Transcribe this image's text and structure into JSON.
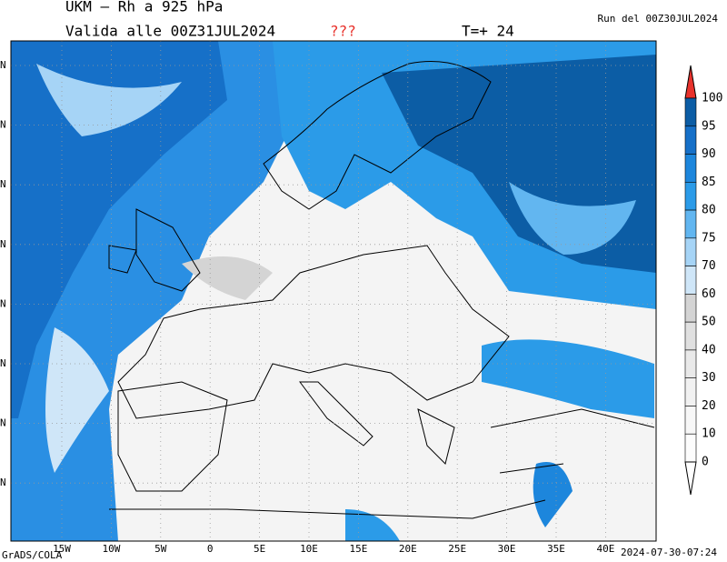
{
  "header": {
    "title": "UKM – Rh a 925 hPa",
    "valid": "Valida alle 00Z31JUL2024",
    "flag": "???",
    "step": "T=+ 24",
    "run": "Run del 00Z30JUL2024"
  },
  "map": {
    "lon_labels": [
      "15W",
      "10W",
      "5W",
      "0",
      "5E",
      "10E",
      "15E",
      "20E",
      "25E",
      "30E",
      "35E",
      "40E"
    ],
    "lat_labels": [
      "N",
      "N",
      "N",
      "N",
      "N",
      "N",
      "N",
      "N"
    ]
  },
  "colorbar": {
    "labels": [
      "100",
      "95",
      "90",
      "85",
      "80",
      "75",
      "70",
      "60",
      "50",
      "40",
      "30",
      "20",
      "10",
      "0"
    ],
    "colors": [
      "#0c5da5",
      "#1670c8",
      "#1d86dc",
      "#2b9be8",
      "#62b6f0",
      "#a6d4f6",
      "#cfe6f8",
      "#d4d4d4",
      "#e0e0e0",
      "#e9e9e9",
      "#f1f1f1",
      "#f7f7f7",
      "#fcfcfc"
    ],
    "above_color": "#e8322c",
    "below_color": "#ffffff"
  },
  "footer": {
    "software": "GrADS/COLA",
    "timestamp": "2024-07-30-07:24"
  }
}
